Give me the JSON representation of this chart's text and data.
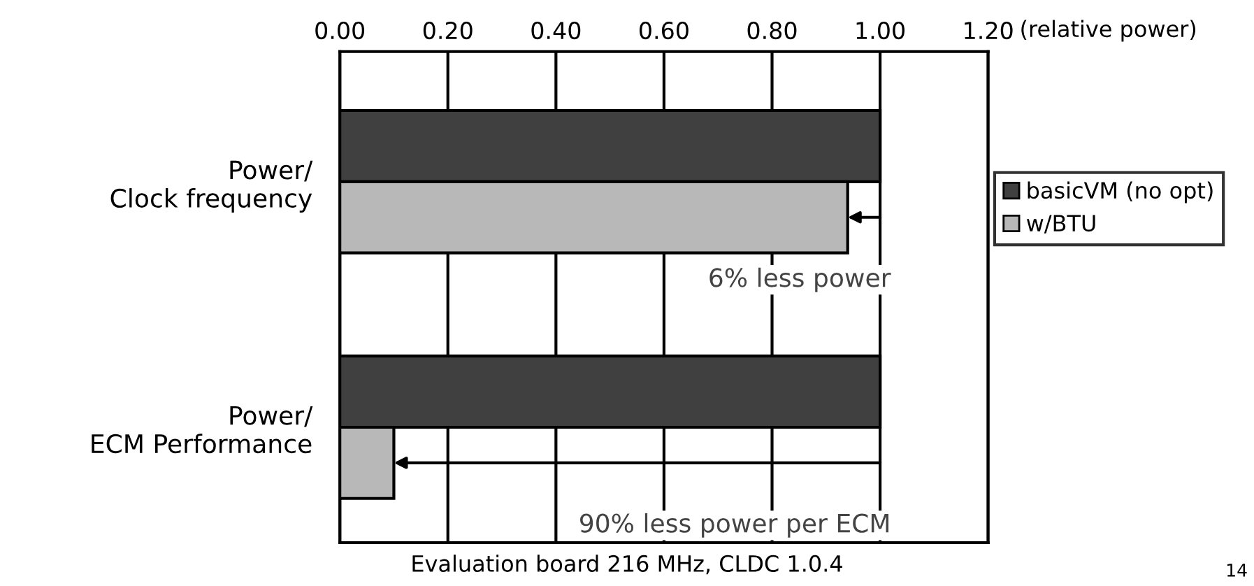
{
  "chart_data": {
    "type": "bar",
    "orientation": "horizontal",
    "categories": [
      "Power/\nClock frequency",
      "Power/\nECM Performance"
    ],
    "series": [
      {
        "name": "basicVM (no opt)",
        "color": "#404040",
        "values": [
          1.0,
          1.0
        ]
      },
      {
        "name": "w/BTU",
        "color": "#b8b8b8",
        "values": [
          0.94,
          0.1
        ]
      }
    ],
    "xlabel": "(relative power)",
    "xlim": [
      0,
      1.2
    ],
    "xticks": [
      {
        "value": 0,
        "label": "0.00"
      },
      {
        "value": 0.2,
        "label": "0.20"
      },
      {
        "value": 0.4,
        "label": "0.40"
      },
      {
        "value": 0.6,
        "label": "0.60"
      },
      {
        "value": 0.8,
        "label": "0.80"
      },
      {
        "value": 1.0,
        "label": "1.00"
      },
      {
        "value": 1.2,
        "label": "1.20"
      }
    ],
    "grid": "x",
    "legend": "right",
    "annotations": [
      "6% less power",
      "90% less power per ECM",
      "Evaluation board 216 MHz, CLDC 1.0.4",
      "14"
    ]
  }
}
